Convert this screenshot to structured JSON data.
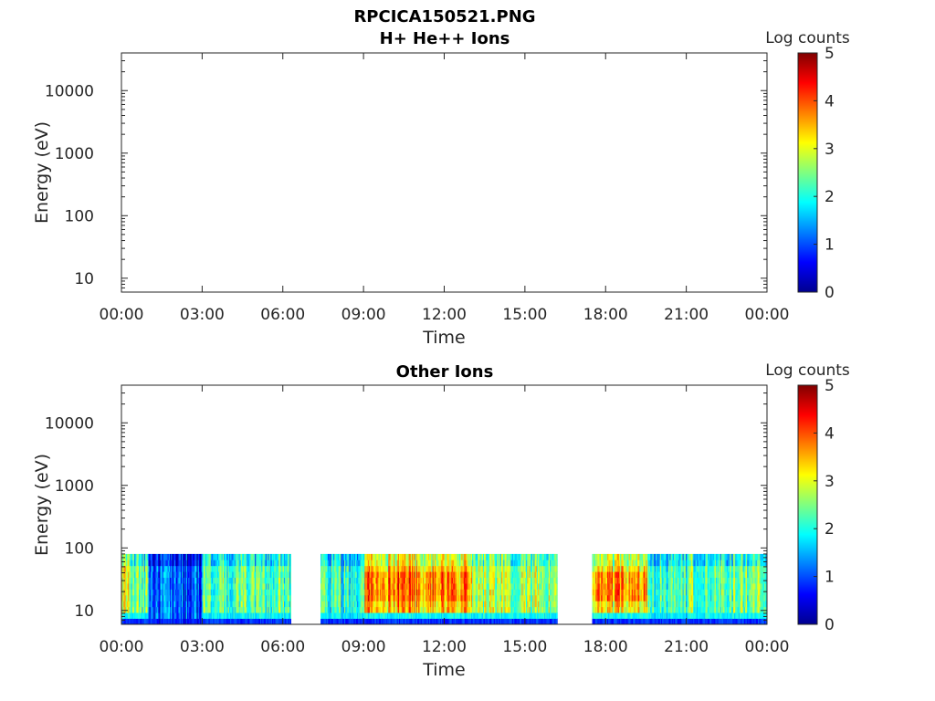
{
  "figure": {
    "title_line1": "RPCICA150521.PNG"
  },
  "colors": {
    "jet": [
      "#00008f",
      "#0000ff",
      "#00ffff",
      "#ffff00",
      "#ff0000",
      "#800000"
    ],
    "axis": "#262626"
  },
  "chart_data": [
    {
      "type": "heatmap",
      "title": "H+ He++ Ions",
      "xlabel": "Time",
      "ylabel": "Energy (eV)",
      "y_scale": "log",
      "ylim": [
        6,
        40000
      ],
      "xlim": [
        0,
        24
      ],
      "x_tick_labels": [
        "00:00",
        "03:00",
        "06:00",
        "09:00",
        "12:00",
        "15:00",
        "18:00",
        "21:00",
        "00:00"
      ],
      "y_tick_values": [
        10,
        100,
        1000,
        10000
      ],
      "y_tick_labels": [
        "10",
        "100",
        "1000",
        "10000"
      ],
      "colorbar": {
        "label": "Log counts",
        "range": [
          0,
          5
        ],
        "tick_labels": [
          "0",
          "1",
          "2",
          "3",
          "4",
          "5"
        ]
      },
      "data_intervals_hours": [],
      "note_empty": true
    },
    {
      "type": "heatmap",
      "title": "Other Ions",
      "xlabel": "Time",
      "ylabel": "Energy (eV)",
      "y_scale": "log",
      "ylim": [
        6,
        40000
      ],
      "xlim": [
        0,
        24
      ],
      "x_tick_labels": [
        "00:00",
        "03:00",
        "06:00",
        "09:00",
        "12:00",
        "15:00",
        "18:00",
        "21:00",
        "00:00"
      ],
      "y_tick_values": [
        10,
        100,
        1000,
        10000
      ],
      "y_tick_labels": [
        "10",
        "100",
        "1000",
        "10000"
      ],
      "colorbar": {
        "label": "Log counts",
        "range": [
          0,
          5
        ],
        "tick_labels": [
          "0",
          "1",
          "2",
          "3",
          "4",
          "5"
        ]
      },
      "energy_range_ev": [
        6,
        80
      ],
      "data_intervals_hours": [
        [
          0,
          6.3
        ],
        [
          7.4,
          16.2
        ],
        [
          17.5,
          24
        ]
      ],
      "approx_log_counts": [
        {
          "t": [
            0.0,
            0.3
          ],
          "level": 3.0
        },
        {
          "t": [
            0.3,
            1.0
          ],
          "level": 2.3
        },
        {
          "t": [
            1.0,
            3.0
          ],
          "level": 1.0
        },
        {
          "t": [
            3.0,
            6.3
          ],
          "level": 2.3
        },
        {
          "t": [
            7.4,
            9.0
          ],
          "level": 2.0
        },
        {
          "t": [
            9.0,
            13.0
          ],
          "level": 3.4
        },
        {
          "t": [
            13.0,
            16.2
          ],
          "level": 2.7
        },
        {
          "t": [
            17.5,
            19.5
          ],
          "level": 3.2
        },
        {
          "t": [
            19.5,
            21.0
          ],
          "level": 2.2
        },
        {
          "t": [
            21.0,
            24.0
          ],
          "level": 2.4
        }
      ],
      "peak_band_ev": [
        15,
        45
      ],
      "peak_level": 3.8
    }
  ]
}
